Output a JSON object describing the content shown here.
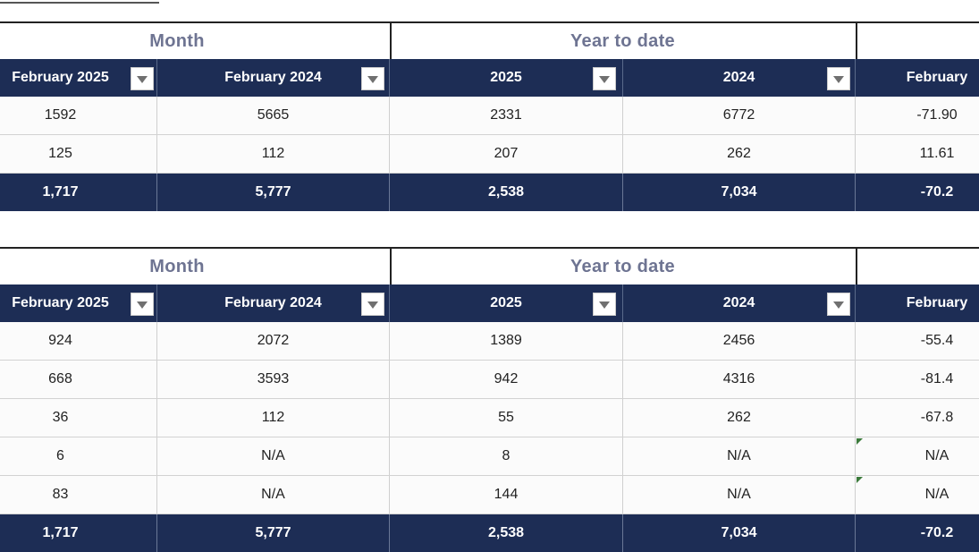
{
  "tables": [
    {
      "groups": [
        "Month",
        "Year to date",
        ""
      ],
      "columns": [
        "February 2025",
        "February 2024",
        "2025",
        "2024",
        "February"
      ],
      "rows": [
        [
          "1592",
          "5665",
          "2331",
          "6772",
          "-71.90"
        ],
        [
          "125",
          "112",
          "207",
          "262",
          "11.61"
        ]
      ],
      "total": [
        "1,717",
        "5,777",
        "2,538",
        "7,034",
        "-70.2"
      ]
    },
    {
      "groups": [
        "Month",
        "Year to date",
        ""
      ],
      "columns": [
        "February 2025",
        "February 2024",
        "2025",
        "2024",
        "February"
      ],
      "rows": [
        [
          "924",
          "2072",
          "1389",
          "2456",
          "-55.4"
        ],
        [
          "668",
          "3593",
          "942",
          "4316",
          "-81.4"
        ],
        [
          "36",
          "112",
          "55",
          "262",
          "-67.8"
        ],
        [
          "6",
          "N/A",
          "8",
          "N/A",
          "N/A"
        ],
        [
          "83",
          "N/A",
          "144",
          "N/A",
          "N/A"
        ]
      ],
      "total": [
        "1,717",
        "5,777",
        "2,538",
        "7,034",
        "-70.2"
      ]
    }
  ],
  "icons": {
    "filter_dropdown": "chevron-down-icon",
    "error_marker": "green-triangle-icon"
  },
  "colors": {
    "header_bg": "#1d2d55",
    "group_text": "#6e7492",
    "header_text": "#ffffff"
  }
}
